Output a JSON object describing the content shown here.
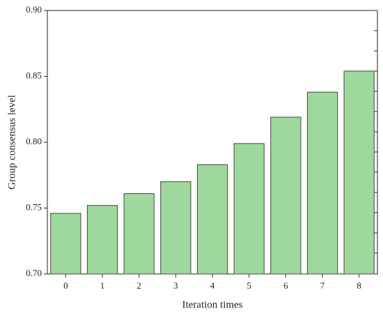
{
  "chart_data": {
    "type": "bar",
    "x_label": "Iteration times",
    "y_label": "Group consensus level",
    "categories": [
      "0",
      "1",
      "2",
      "3",
      "4",
      "5",
      "6",
      "7",
      "8"
    ],
    "values": [
      0.746,
      0.752,
      0.761,
      0.77,
      0.783,
      0.799,
      0.819,
      0.838,
      0.854
    ],
    "color": "#9fd89c",
    "ylim": [
      0.7,
      0.9
    ],
    "yticks": [
      {
        "value": 0.7,
        "label": "0.70"
      },
      {
        "value": 0.75,
        "label": "0.75"
      },
      {
        "value": 0.8,
        "label": "0.80"
      },
      {
        "value": 0.85,
        "label": "0.85"
      },
      {
        "value": 0.9,
        "label": "0.90"
      }
    ],
    "grid": false
  }
}
